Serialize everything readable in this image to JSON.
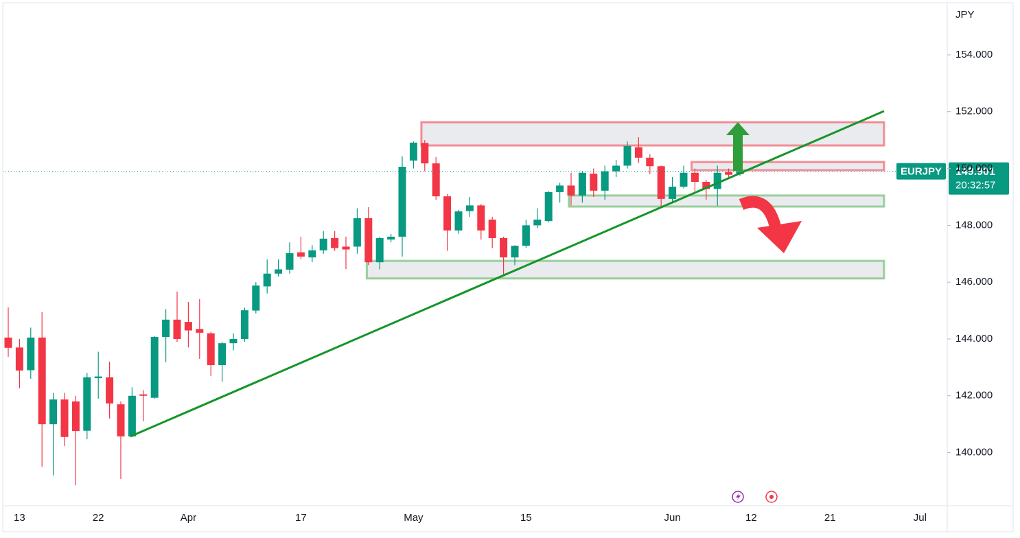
{
  "chart_data": {
    "type": "candlestick",
    "symbol": "EURJPY",
    "currency": "JPY",
    "last_price": 149.901,
    "countdown": "20:32:57",
    "up_color": "#089981",
    "down_color": "#f23645",
    "categories": [
      null,
      "13",
      null,
      null,
      null,
      null,
      null,
      null,
      "22",
      null,
      null,
      null,
      null,
      null,
      null,
      null,
      "Apr",
      null,
      null,
      null,
      null,
      null,
      null,
      null,
      null,
      null,
      "17",
      null,
      null,
      null,
      null,
      null,
      null,
      null,
      null,
      null,
      "May",
      null,
      null,
      null,
      null,
      null,
      null,
      null,
      null,
      null,
      "15",
      null,
      null,
      null,
      null,
      null,
      null,
      null,
      null,
      null,
      null,
      null,
      null,
      "Jun",
      null,
      null,
      null,
      null,
      null,
      null,
      "12",
      null,
      null,
      null,
      null,
      null,
      null,
      "21",
      null,
      null,
      null,
      null,
      null,
      null,
      null,
      "Jul",
      null
    ],
    "open": [
      144.05,
      143.7,
      142.9,
      144.05,
      141.0,
      141.87,
      141.8,
      140.77,
      142.62,
      142.65,
      141.7,
      140.57,
      142.05,
      141.93,
      144.07,
      144.68,
      144.6,
      144.35,
      144.2,
      143.08,
      143.85,
      144.0,
      145.0,
      145.85,
      146.3,
      146.44,
      147.05,
      146.87,
      147.12,
      147.55,
      147.25,
      147.25,
      148.25,
      146.7,
      147.5,
      147.6,
      150.28,
      150.9,
      150.18,
      149.02,
      147.82,
      148.5,
      148.7,
      148.2,
      147.55,
      146.87,
      147.28,
      148.0,
      148.15,
      149.17,
      149.4,
      149.05,
      149.82,
      149.22,
      149.9,
      150.1,
      150.75,
      150.38,
      150.08,
      148.93,
      149.36,
      149.85,
      149.53,
      149.28,
      149.87,
      149.8,
      null,
      null,
      null,
      null,
      null,
      null,
      null,
      null,
      null,
      null,
      null,
      null,
      null,
      null,
      null,
      null,
      null
    ],
    "high": [
      145.11,
      144.0,
      144.4,
      144.94,
      142.1,
      142.1,
      142.0,
      142.8,
      143.55,
      143.2,
      141.8,
      142.3,
      142.2,
      144.1,
      145.05,
      145.67,
      145.3,
      145.4,
      144.25,
      143.9,
      144.2,
      145.1,
      146.0,
      146.8,
      146.8,
      147.4,
      147.6,
      147.3,
      147.8,
      147.8,
      147.6,
      148.6,
      148.64,
      147.6,
      147.7,
      150.43,
      150.95,
      151.0,
      150.4,
      149.1,
      148.55,
      149.0,
      148.75,
      148.3,
      147.6,
      147.3,
      148.2,
      148.6,
      149.2,
      149.5,
      149.85,
      149.9,
      150.0,
      150.1,
      150.3,
      150.95,
      151.1,
      150.5,
      150.1,
      149.7,
      150.1,
      150.0,
      149.6,
      150.1,
      150.0,
      150.0,
      null,
      null,
      null,
      null,
      null,
      null,
      null,
      null,
      null,
      null,
      null,
      null,
      null,
      null,
      null,
      null,
      null
    ],
    "low": [
      143.37,
      142.26,
      142.6,
      139.5,
      139.2,
      140.23,
      138.85,
      140.47,
      141.9,
      141.2,
      139.07,
      140.55,
      141.1,
      141.9,
      143.18,
      143.9,
      143.7,
      143.3,
      142.7,
      142.5,
      143.6,
      143.9,
      144.9,
      145.6,
      146.2,
      146.3,
      146.8,
      146.7,
      147.0,
      147.1,
      146.46,
      147.0,
      146.6,
      146.45,
      147.4,
      146.9,
      150.0,
      149.9,
      148.9,
      147.1,
      147.7,
      148.3,
      147.5,
      147.2,
      146.2,
      146.6,
      147.2,
      147.9,
      148.1,
      148.8,
      148.7,
      148.8,
      149.0,
      148.9,
      149.7,
      150.0,
      150.2,
      149.8,
      148.65,
      148.8,
      149.3,
      149.2,
      148.9,
      148.69,
      149.7,
      149.75,
      null,
      null,
      null,
      null,
      null,
      null,
      null,
      null,
      null,
      null,
      null,
      null,
      null,
      null,
      null,
      null,
      null
    ],
    "close": [
      143.69,
      142.89,
      144.05,
      141.0,
      141.87,
      140.55,
      140.76,
      142.65,
      142.68,
      141.73,
      140.57,
      142.0,
      142.0,
      144.07,
      144.68,
      144.0,
      144.3,
      144.22,
      143.08,
      143.85,
      144.0,
      145.01,
      145.88,
      146.3,
      146.45,
      147.02,
      146.9,
      147.12,
      147.53,
      147.2,
      147.15,
      148.25,
      146.7,
      147.55,
      147.6,
      150.06,
      150.91,
      150.18,
      149.02,
      147.82,
      148.49,
      148.7,
      147.82,
      147.55,
      146.87,
      147.28,
      148.0,
      148.2,
      149.17,
      149.4,
      149.05,
      149.85,
      149.22,
      149.9,
      150.1,
      150.79,
      150.38,
      150.08,
      148.93,
      149.36,
      149.85,
      149.53,
      149.28,
      149.85,
      149.78,
      149.9,
      null,
      null,
      null,
      null,
      null,
      null,
      null,
      null,
      null,
      null,
      null,
      null,
      null,
      null,
      null,
      null,
      null
    ],
    "ylim": [
      138.13,
      155.81
    ],
    "yticks": [
      {
        "value": 140,
        "label": "140.000"
      },
      {
        "value": 142,
        "label": "142.000"
      },
      {
        "value": 144,
        "label": "144.000"
      },
      {
        "value": 146,
        "label": "146.000"
      },
      {
        "value": 148,
        "label": "148.000"
      },
      {
        "value": 150,
        "label": "150.000"
      },
      {
        "value": 152,
        "label": "152.000"
      },
      {
        "value": 154,
        "label": "154.000"
      }
    ],
    "zones": [
      {
        "start": 36.7,
        "end": 77.8,
        "low": 150.81,
        "high": 151.63,
        "color": "#f23645"
      },
      {
        "start": 60.7,
        "end": 77.8,
        "low": 149.94,
        "high": 150.23,
        "color": "#f23645"
      },
      {
        "start": 49.8,
        "end": 77.8,
        "low": 148.66,
        "high": 149.05,
        "color": "#4caf50"
      },
      {
        "start": 31.85,
        "end": 77.8,
        "low": 146.13,
        "high": 146.75,
        "color": "#4caf50"
      }
    ],
    "trendline": {
      "x": [
        10.85,
        77.8
      ],
      "y": [
        140.57,
        152.02
      ],
      "color": "#16952a"
    }
  }
}
